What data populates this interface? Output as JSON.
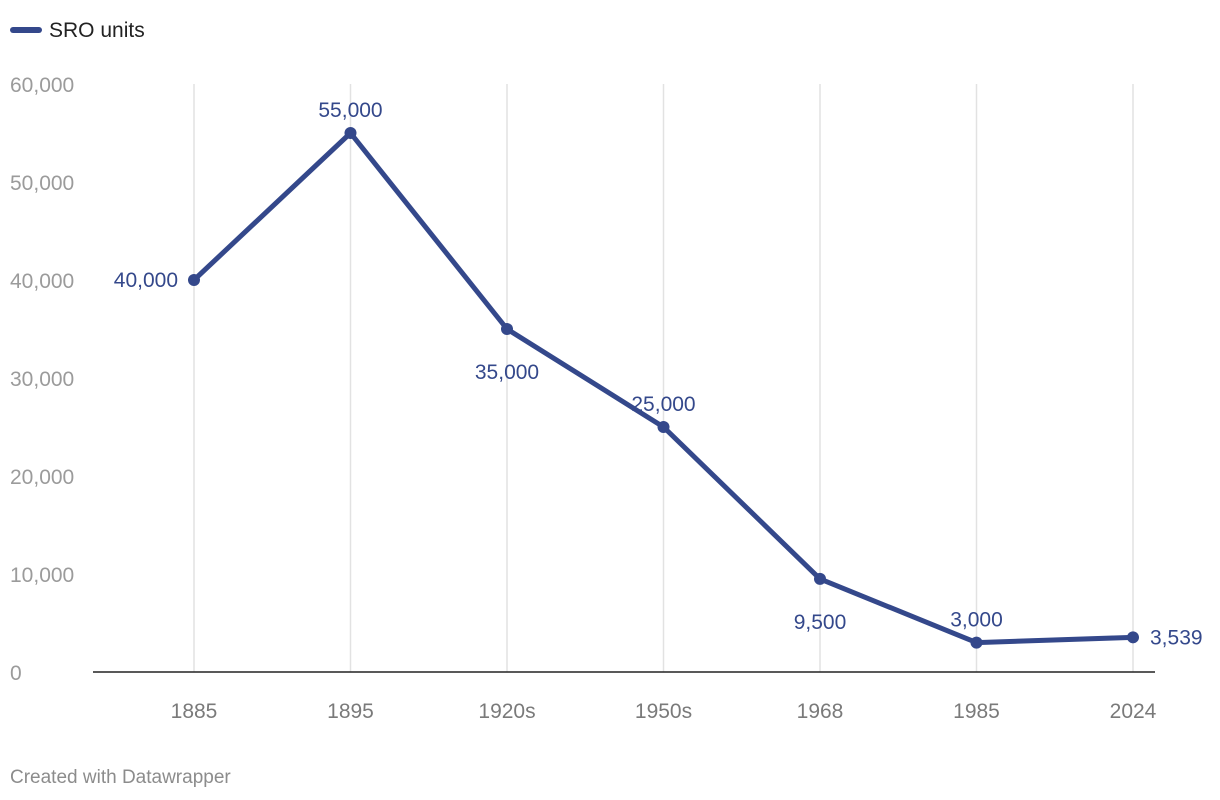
{
  "chart_data": {
    "type": "line",
    "categories": [
      "1885",
      "1895",
      "1920s",
      "1950s",
      "1968",
      "1985",
      "2024"
    ],
    "series": [
      {
        "name": "SRO units",
        "color": "#34488b",
        "values": [
          40000,
          55000,
          35000,
          25000,
          9500,
          3000,
          3539
        ],
        "labels": [
          "40,000",
          "55,000",
          "35,000",
          "25,000",
          "9,500",
          "3,000",
          "3,539"
        ],
        "label_positions": [
          "left",
          "above",
          "below",
          "above",
          "below",
          "above",
          "right"
        ]
      }
    ],
    "ylim": [
      0,
      60000
    ],
    "y_ticks": [
      0,
      10000,
      20000,
      30000,
      40000,
      50000,
      60000
    ],
    "y_tick_labels": [
      "0",
      "10,000",
      "20,000",
      "30,000",
      "40,000",
      "50,000",
      "60,000"
    ],
    "title": "",
    "xlabel": "",
    "ylabel": "",
    "grid": "vertical",
    "legend": "top-left"
  },
  "legend": {
    "label": "SRO units"
  },
  "footer": {
    "credit": "Created with Datawrapper"
  }
}
